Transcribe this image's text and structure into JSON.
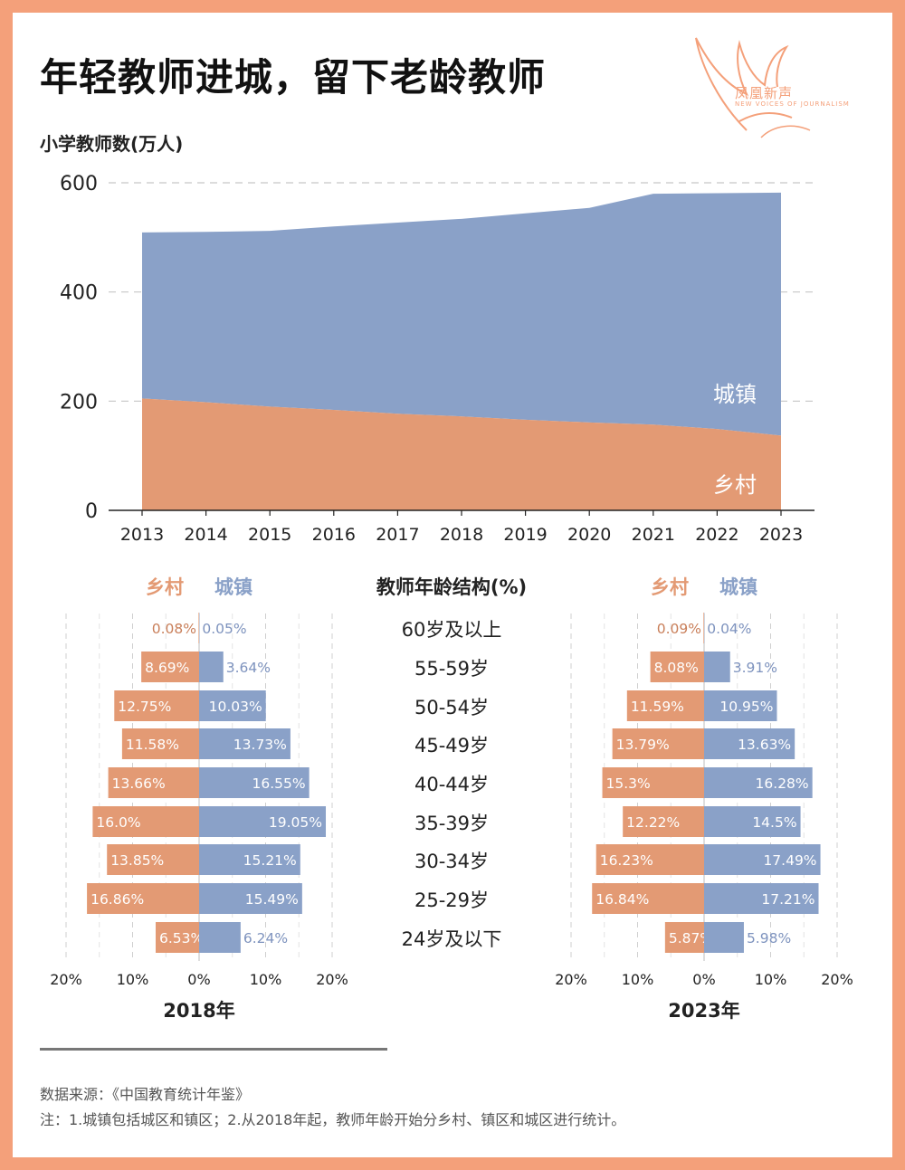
{
  "title": "年轻教师进城，留下老龄教师",
  "logo": {
    "name": "凤凰新声",
    "subtitle": "NEW VOICES OF JOURNALISM"
  },
  "colors": {
    "rural": "#E39A74",
    "urban": "#8AA1C8",
    "rural_text": "#C97F5A",
    "urban_text": "#7E93BE"
  },
  "chart_data": [
    {
      "type": "area",
      "ylabel": "小学教师数(万人)",
      "x": [
        "2013",
        "2014",
        "2015",
        "2016",
        "2017",
        "2018",
        "2019",
        "2020",
        "2021",
        "2022",
        "2023"
      ],
      "ylim": [
        0,
        600
      ],
      "yticks": [
        "0",
        "200",
        "400",
        "600"
      ],
      "stacked": true,
      "grid": true,
      "series": [
        {
          "name": "乡村",
          "values": [
            205,
            198,
            190,
            184,
            177,
            172,
            166,
            161,
            157,
            149,
            137
          ]
        },
        {
          "name": "城镇",
          "values": [
            304,
            312,
            322,
            336,
            350,
            362,
            378,
            393,
            423,
            432,
            445
          ]
        }
      ]
    },
    {
      "type": "bar",
      "title": "教师年龄结构(%)",
      "categories": [
        "60岁及以上",
        "55-59岁",
        "50-54岁",
        "45-49岁",
        "40-44岁",
        "35-39岁",
        "30-34岁",
        "25-29岁",
        "24岁及以下"
      ],
      "xticks": [
        "20%",
        "10%",
        "0%",
        "10%",
        "20%"
      ],
      "xlim": [
        -20,
        20
      ],
      "panels": [
        {
          "title": "2018年",
          "legend": [
            "乡村",
            "城镇"
          ],
          "rural": [
            0.08,
            8.69,
            12.75,
            11.58,
            13.66,
            16.0,
            13.85,
            16.86,
            6.53
          ],
          "urban": [
            0.05,
            3.64,
            10.03,
            13.73,
            16.55,
            19.05,
            15.21,
            15.49,
            6.24
          ],
          "rural_labels": [
            "0.08%",
            "8.69%",
            "12.75%",
            "11.58%",
            "13.66%",
            "16.0%",
            "13.85%",
            "16.86%",
            "6.53%"
          ],
          "urban_labels": [
            "0.05%",
            "3.64%",
            "10.03%",
            "13.73%",
            "16.55%",
            "19.05%",
            "15.21%",
            "15.49%",
            "6.24%"
          ]
        },
        {
          "title": "2023年",
          "legend": [
            "乡村",
            "城镇"
          ],
          "rural": [
            0.09,
            8.08,
            11.59,
            13.79,
            15.3,
            12.22,
            16.23,
            16.84,
            5.87
          ],
          "urban": [
            0.04,
            3.91,
            10.95,
            13.63,
            16.28,
            14.5,
            17.49,
            17.21,
            5.98
          ],
          "rural_labels": [
            "0.09%",
            "8.08%",
            "11.59%",
            "13.79%",
            "15.3%",
            "12.22%",
            "16.23%",
            "16.84%",
            "5.87%"
          ],
          "urban_labels": [
            "0.04%",
            "3.91%",
            "10.95%",
            "13.63%",
            "16.28%",
            "14.5%",
            "17.49%",
            "17.21%",
            "5.98%"
          ]
        }
      ]
    }
  ],
  "footer": {
    "source": "数据来源：《中国教育统计年鉴》",
    "note": "注：1.城镇包括城区和镇区；2.从2018年起，教师年龄开始分乡村、镇区和城区进行统计。"
  }
}
